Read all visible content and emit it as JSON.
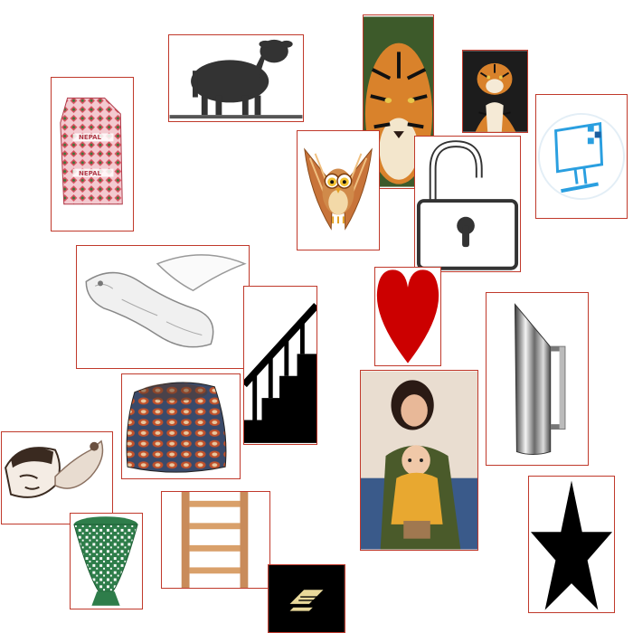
{
  "hat_text": "NEPAL",
  "tiles": [
    {
      "id": "nepal-hat",
      "icon": "dhaka-topi-hat-icon"
    },
    {
      "id": "sheep",
      "icon": "sheep-silhouette-icon"
    },
    {
      "id": "tiger-face",
      "icon": "tiger-face-photo"
    },
    {
      "id": "tiger-sit",
      "icon": "sitting-tiger-photo"
    },
    {
      "id": "computer",
      "icon": "computer-monitor-icon"
    },
    {
      "id": "owl",
      "icon": "owl-cartoon-icon"
    },
    {
      "id": "lock",
      "icon": "open-padlock-icon"
    },
    {
      "id": "sketch",
      "icon": "pencil-sketch-fish-icon"
    },
    {
      "id": "stairs",
      "icon": "staircase-silhouette-icon"
    },
    {
      "id": "heart",
      "icon": "heart-icon"
    },
    {
      "id": "pitcher",
      "icon": "steel-pitcher-icon"
    },
    {
      "id": "basket",
      "icon": "patterned-pouf-icon"
    },
    {
      "id": "family",
      "icon": "mother-and-baby-photo"
    },
    {
      "id": "face-sketch",
      "icon": "face-sketch-icon"
    },
    {
      "id": "ladder",
      "icon": "wooden-ladder-icon"
    },
    {
      "id": "star",
      "icon": "star-icon"
    },
    {
      "id": "green-basket",
      "icon": "green-woven-basket-icon"
    },
    {
      "id": "dark-logo",
      "icon": "gold-logo-icon"
    }
  ],
  "colors": {
    "border": "#c0392b",
    "heart": "#cc0000",
    "star": "#000000",
    "hat_pink": "#e8a0a8",
    "hat_green": "#3a7a3a",
    "tiger_orange": "#d9822b",
    "ladder_wood": "#c98b5a",
    "computer_blue": "#2a9fe0",
    "green_basket": "#2e7d4a",
    "dark_logo_bg": "#000000",
    "dark_logo_mark": "#e8d89a"
  }
}
